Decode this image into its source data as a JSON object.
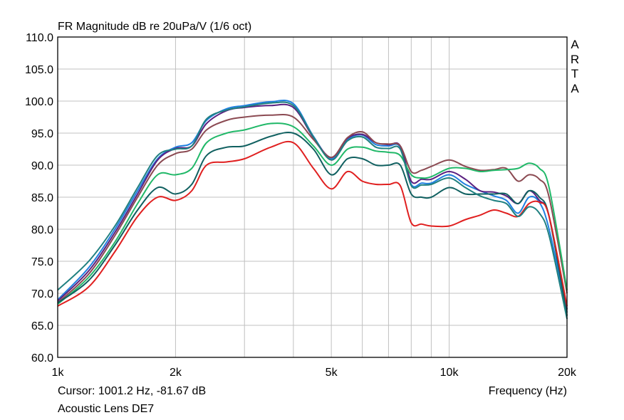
{
  "chart_data": {
    "type": "line",
    "title": "FR Magnitude dB re 20uPa/V (1/6 oct)",
    "xlabel": "Frequency (Hz)",
    "ylabel": "",
    "x_scale": "log",
    "xlim": [
      1000,
      20000
    ],
    "ylim": [
      60,
      110
    ],
    "x_ticks": [
      1000,
      2000,
      5000,
      10000,
      20000
    ],
    "x_tick_labels": [
      "1k",
      "2k",
      "5k",
      "10k",
      "20k"
    ],
    "y_ticks": [
      60,
      65,
      70,
      75,
      80,
      85,
      90,
      95,
      100,
      105,
      110
    ],
    "y_tick_labels": [
      "60.0",
      "65.0",
      "70.0",
      "75.0",
      "80.0",
      "85.0",
      "90.0",
      "95.0",
      "100.0",
      "105.0",
      "110.0"
    ],
    "grid": true,
    "brand": "ARTA",
    "cursor_readout": "Cursor: 1001.2 Hz, -81.67 dB",
    "caption": "Acoustic Lens DE7",
    "x": [
      1000,
      1200,
      1400,
      1600,
      1800,
      2000,
      2200,
      2400,
      2700,
      3000,
      3500,
      4000,
      4500,
      5000,
      5500,
      6000,
      6500,
      7000,
      7500,
      8000,
      8500,
      9000,
      10000,
      11000,
      12000,
      13000,
      14000,
      15000,
      16000,
      17000,
      18000,
      20000
    ],
    "series": [
      {
        "color": "#2080e0",
        "values": [
          69.0,
          74.0,
          80.0,
          86.0,
          91.0,
          92.8,
          93.5,
          97.0,
          98.8,
          99.3,
          99.9,
          99.6,
          94.5,
          91.0,
          94.0,
          94.7,
          93.2,
          93.0,
          92.8,
          87.0,
          87.2,
          87.2,
          88.5,
          87.0,
          86.0,
          85.2,
          84.5,
          82.5,
          85.0,
          84.2,
          80.0,
          67.0
        ]
      },
      {
        "color": "#5a2080",
        "values": [
          68.8,
          73.5,
          79.5,
          85.5,
          90.8,
          92.6,
          93.0,
          96.5,
          98.5,
          99.0,
          99.3,
          99.0,
          94.3,
          91.2,
          94.2,
          94.8,
          93.5,
          93.2,
          93.0,
          87.5,
          87.8,
          87.8,
          89.0,
          87.8,
          86.0,
          85.8,
          85.2,
          84.0,
          86.0,
          84.5,
          82.0,
          67.5
        ]
      },
      {
        "color": "#8b4a52",
        "values": [
          68.5,
          73.0,
          79.0,
          85.0,
          90.0,
          91.8,
          92.5,
          95.5,
          97.0,
          97.5,
          97.8,
          97.5,
          94.0,
          91.2,
          94.3,
          95.2,
          93.5,
          93.3,
          93.0,
          89.0,
          89.2,
          89.8,
          90.8,
          89.8,
          89.2,
          89.3,
          89.5,
          87.5,
          88.5,
          87.8,
          85.0,
          70.0
        ]
      },
      {
        "color": "#20b868",
        "values": [
          68.3,
          72.5,
          78.0,
          84.0,
          88.5,
          88.5,
          89.5,
          93.5,
          95.0,
          95.5,
          96.5,
          96.0,
          93.0,
          90.0,
          92.5,
          92.8,
          92.2,
          92.0,
          91.5,
          88.5,
          88.0,
          88.2,
          89.5,
          89.5,
          89.0,
          89.2,
          89.3,
          89.5,
          90.3,
          89.5,
          86.5,
          70.5
        ]
      },
      {
        "color": "#106060",
        "values": [
          68.5,
          72.0,
          77.5,
          83.0,
          86.5,
          85.5,
          87.0,
          91.5,
          92.8,
          93.0,
          94.5,
          95.0,
          92.5,
          88.5,
          91.0,
          91.0,
          90.0,
          90.0,
          90.0,
          85.5,
          85.0,
          85.0,
          86.5,
          85.5,
          85.5,
          85.5,
          85.5,
          84.0,
          86.0,
          85.0,
          82.0,
          66.5
        ]
      },
      {
        "color": "#e02020",
        "values": [
          68.0,
          71.0,
          76.5,
          82.0,
          85.0,
          84.5,
          86.0,
          90.0,
          90.5,
          91.0,
          92.8,
          93.5,
          89.5,
          86.3,
          89.0,
          87.5,
          87.0,
          87.0,
          86.8,
          81.0,
          80.8,
          80.5,
          80.5,
          81.5,
          82.2,
          83.0,
          82.5,
          82.0,
          84.0,
          84.2,
          82.0,
          68.0
        ]
      },
      {
        "color": "#208080",
        "values": [
          70.5,
          75.0,
          80.5,
          86.5,
          91.5,
          92.5,
          93.0,
          97.2,
          98.6,
          99.1,
          99.7,
          99.3,
          94.4,
          90.8,
          93.8,
          94.4,
          92.8,
          92.6,
          92.5,
          86.8,
          86.9,
          87.0,
          88.0,
          86.5,
          85.2,
          84.5,
          84.0,
          82.0,
          83.5,
          82.5,
          79.0,
          66.0
        ]
      }
    ]
  }
}
